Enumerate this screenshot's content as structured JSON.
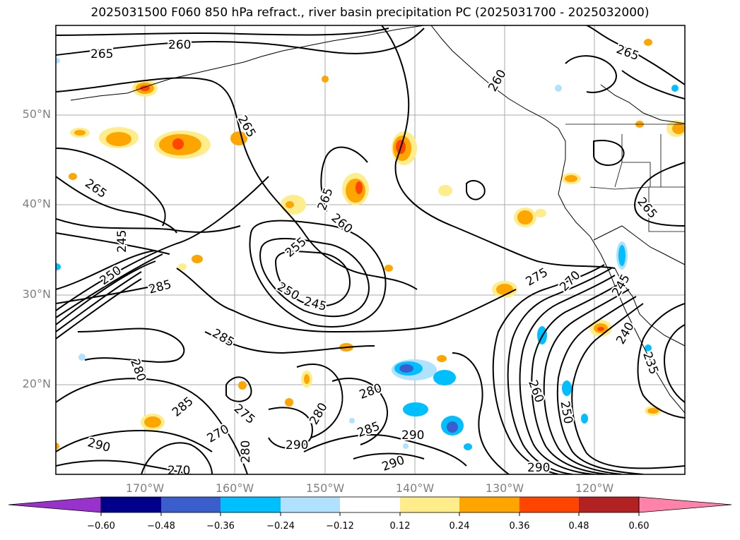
{
  "title": "2025031500 F060 850 hPa refract., river basin precipitation PC (2025031700 - 2025032000)",
  "latitude_labels": [
    "50°N",
    "40°N",
    "30°N",
    "20°N"
  ],
  "longitude_labels": [
    "170°W",
    "160°W",
    "150°W",
    "140°W",
    "130°W",
    "120°W"
  ],
  "contour_labels": [
    "265",
    "260",
    "265",
    "265",
    "265",
    "265",
    "260",
    "255",
    "250",
    "245",
    "245",
    "250",
    "285",
    "285",
    "280",
    "285",
    "275",
    "270",
    "270",
    "280",
    "290",
    "290",
    "280",
    "280",
    "285",
    "290",
    "290",
    "275",
    "270",
    "260",
    "265",
    "250",
    "245",
    "240",
    "235",
    "290",
    "260"
  ],
  "colorbar": {
    "tick_labels": [
      "−0.60",
      "−0.48",
      "−0.36",
      "−0.24",
      "−0.12",
      "0.12",
      "0.24",
      "0.36",
      "0.48",
      "0.60"
    ],
    "colors": [
      "#9932CC",
      "#00008B",
      "#3A5FCD",
      "#00BFFF",
      "#B0E2FF",
      "#FFFFFF",
      "#FFEC8B",
      "#FFA500",
      "#FF4500",
      "#B22222",
      "#FF82AB"
    ]
  }
}
